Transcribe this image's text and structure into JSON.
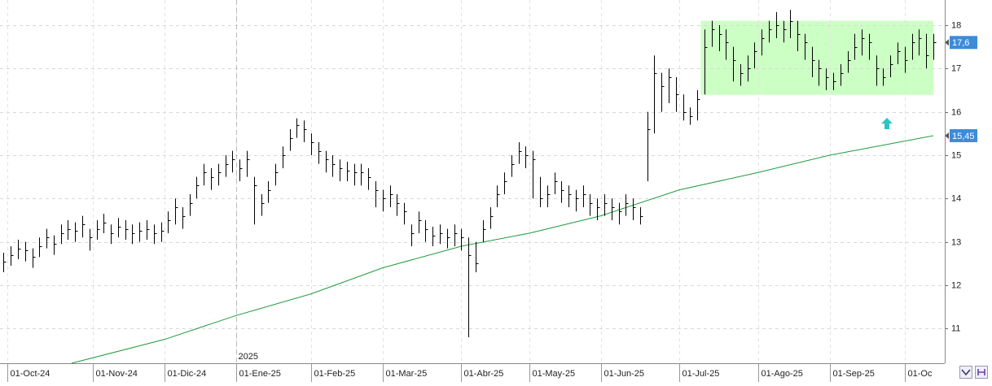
{
  "chart_data": {
    "type": "ohlc",
    "color": "#000000",
    "x": [
      -1,
      1,
      3,
      5,
      7,
      9,
      11,
      13,
      15,
      17,
      19,
      21,
      23,
      25,
      27,
      29,
      31,
      33,
      35,
      37,
      39,
      41,
      43,
      45,
      47,
      49,
      51,
      53,
      55,
      57,
      59,
      61,
      63,
      65,
      67,
      69,
      71,
      73,
      75,
      77,
      79,
      81,
      83,
      85,
      87,
      89,
      91,
      93,
      95,
      97,
      99,
      101,
      103,
      105,
      107,
      109,
      111,
      113,
      115,
      117,
      119,
      121,
      123,
      125,
      127,
      129,
      131,
      133,
      135,
      137,
      139,
      141,
      143,
      145,
      147,
      149,
      151,
      153,
      155,
      157,
      159,
      161,
      163,
      165,
      167,
      169,
      171,
      173,
      175,
      177,
      179,
      181,
      183,
      185,
      187,
      189,
      191,
      193,
      195,
      197,
      199,
      201,
      203,
      205,
      207,
      209,
      211,
      213,
      215,
      217,
      219,
      221,
      223,
      225,
      227,
      229,
      231,
      233,
      235,
      237,
      239,
      241,
      243,
      245,
      247,
      249,
      251,
      253,
      255,
      257,
      259
    ],
    "high": [
      12.75,
      12.9,
      13.05,
      13.0,
      12.85,
      13.1,
      13.3,
      13.15,
      13.4,
      13.5,
      13.45,
      13.6,
      13.3,
      13.5,
      13.65,
      13.4,
      13.55,
      13.5,
      13.4,
      13.45,
      13.5,
      13.4,
      13.45,
      13.7,
      14.0,
      13.8,
      14.1,
      14.5,
      14.8,
      14.7,
      14.8,
      15.0,
      15.1,
      14.9,
      15.1,
      14.5,
      14.1,
      14.4,
      14.8,
      15.2,
      15.6,
      15.85,
      15.8,
      15.5,
      15.3,
      15.1,
      15.0,
      14.9,
      14.85,
      14.8,
      14.8,
      14.7,
      14.4,
      14.2,
      14.3,
      14.1,
      13.9,
      13.4,
      13.7,
      13.5,
      13.35,
      13.4,
      13.3,
      13.4,
      13.3,
      13.1,
      13.0,
      13.5,
      13.8,
      14.3,
      14.6,
      15.0,
      15.3,
      15.2,
      15.1,
      14.5,
      14.3,
      14.6,
      14.4,
      14.3,
      14.2,
      14.3,
      14.1,
      14.0,
      14.1,
      14.0,
      13.9,
      14.1,
      14.0,
      13.8,
      16.0,
      17.3,
      16.9,
      17.0,
      16.8,
      16.4,
      16.1,
      16.5,
      17.9,
      18.1,
      18.0,
      17.9,
      17.5,
      17.1,
      17.3,
      17.6,
      17.9,
      18.1,
      18.3,
      18.1,
      18.35,
      18.1,
      17.8,
      17.5,
      17.2,
      17.0,
      16.9,
      17.1,
      17.4,
      17.8,
      17.9,
      17.8,
      17.3,
      17.0,
      17.3,
      17.6,
      17.5,
      17.8,
      17.9,
      17.8,
      17.8
    ],
    "low": [
      12.3,
      12.45,
      12.6,
      12.55,
      12.4,
      12.65,
      12.85,
      12.7,
      12.95,
      13.05,
      13.0,
      13.1,
      12.8,
      13.05,
      13.2,
      12.95,
      13.1,
      13.05,
      12.95,
      13.0,
      13.05,
      12.95,
      13.0,
      13.2,
      13.4,
      13.3,
      13.6,
      14.0,
      14.3,
      14.2,
      14.3,
      14.5,
      14.6,
      14.4,
      14.5,
      13.4,
      13.6,
      13.9,
      14.3,
      14.7,
      15.1,
      15.4,
      15.3,
      15.0,
      14.8,
      14.6,
      14.5,
      14.4,
      14.4,
      14.3,
      14.3,
      14.2,
      13.8,
      13.7,
      13.8,
      13.6,
      13.4,
      12.9,
      13.2,
      13.0,
      12.9,
      12.95,
      12.85,
      12.9,
      12.8,
      10.8,
      12.3,
      13.0,
      13.3,
      13.8,
      14.1,
      14.5,
      14.8,
      14.7,
      14.0,
      13.8,
      13.8,
      14.1,
      13.9,
      13.8,
      13.7,
      13.8,
      13.6,
      13.5,
      13.6,
      13.5,
      13.4,
      13.6,
      13.5,
      13.4,
      14.4,
      15.5,
      16.0,
      16.2,
      16.0,
      15.8,
      15.7,
      15.8,
      16.4,
      17.5,
      17.4,
      17.2,
      16.7,
      16.6,
      16.7,
      17.0,
      17.3,
      17.6,
      17.7,
      17.6,
      17.7,
      17.4,
      17.2,
      16.8,
      16.6,
      16.5,
      16.5,
      16.6,
      16.9,
      17.2,
      17.3,
      17.2,
      16.6,
      16.6,
      16.8,
      17.1,
      16.9,
      17.2,
      17.3,
      17.0,
      17.2
    ],
    "close": [
      12.55,
      12.7,
      12.85,
      12.8,
      12.65,
      12.9,
      13.1,
      12.95,
      13.2,
      13.3,
      13.25,
      13.4,
      13.1,
      13.3,
      13.45,
      13.2,
      13.35,
      13.3,
      13.2,
      13.25,
      13.3,
      13.2,
      13.25,
      13.5,
      13.8,
      13.6,
      13.9,
      14.3,
      14.6,
      14.5,
      14.6,
      14.8,
      14.9,
      14.7,
      14.9,
      14.3,
      13.9,
      14.2,
      14.6,
      15.0,
      15.4,
      15.7,
      15.6,
      15.3,
      15.1,
      14.9,
      14.8,
      14.7,
      14.65,
      14.6,
      14.6,
      14.5,
      14.2,
      14.0,
      14.1,
      13.9,
      13.7,
      13.2,
      13.5,
      13.3,
      13.15,
      13.2,
      13.1,
      13.2,
      13.1,
      12.7,
      12.5,
      13.3,
      13.6,
      14.1,
      14.4,
      14.8,
      15.1,
      15.0,
      14.9,
      14.0,
      14.1,
      14.4,
      14.2,
      14.1,
      14.0,
      14.1,
      13.9,
      13.8,
      13.9,
      13.8,
      13.7,
      13.9,
      13.8,
      13.6,
      15.6,
      16.9,
      16.6,
      16.8,
      16.4,
      16.0,
      15.9,
      16.3,
      17.5,
      17.9,
      17.8,
      17.6,
      17.2,
      16.9,
      17.0,
      17.4,
      17.7,
      17.9,
      18.0,
      17.9,
      18.1,
      17.8,
      17.6,
      17.2,
      17.0,
      16.8,
      16.7,
      16.9,
      17.2,
      17.5,
      17.7,
      17.6,
      17.0,
      16.8,
      17.1,
      17.4,
      17.2,
      17.6,
      17.7,
      17.3,
      17.6
    ],
    "moving_average": {
      "color": "#1f9a3c",
      "x": [
        18,
        44,
        64,
        85,
        105,
        127,
        146,
        166,
        188,
        210,
        230,
        259
      ],
      "values": [
        10.2,
        10.75,
        11.3,
        11.8,
        12.4,
        12.9,
        13.2,
        13.6,
        14.2,
        14.6,
        15.0,
        15.45
      ]
    },
    "highlight": {
      "color": "#ccffc4",
      "x": [
        194,
        259
      ],
      "y": [
        16.39,
        18.1
      ]
    },
    "price_labels": [
      {
        "value": 17.6,
        "label": "17,6"
      },
      {
        "value": 15.45,
        "label": "15,45"
      }
    ],
    "annotations": [
      {
        "x": 64,
        "text": "2025"
      }
    ],
    "xlim": [
      -2,
      262.2
    ],
    "ylim": [
      10.2,
      18.58
    ],
    "yticks": [
      11,
      12,
      13,
      14,
      15,
      16,
      17,
      18
    ],
    "xticks": [
      {
        "value": 0,
        "label": "01-Oct-24"
      },
      {
        "value": 24,
        "label": "01-Nov-24"
      },
      {
        "value": 44,
        "label": "01-Dic-24"
      },
      {
        "value": 64,
        "label": "01-Ene-25"
      },
      {
        "value": 85,
        "label": "01-Feb-25"
      },
      {
        "value": 105,
        "label": "01-Mar-25"
      },
      {
        "value": 127,
        "label": "01-Abr-25"
      },
      {
        "value": 146,
        "label": "01-May-25"
      },
      {
        "value": 166,
        "label": "01-Jun-25"
      },
      {
        "value": 188,
        "label": "01-Jul-25"
      },
      {
        "value": 210,
        "label": "01-Ago-25"
      },
      {
        "value": 230,
        "label": "01-Sep-25"
      },
      {
        "value": 251,
        "label": "01-Oc"
      }
    ],
    "grid": true
  }
}
